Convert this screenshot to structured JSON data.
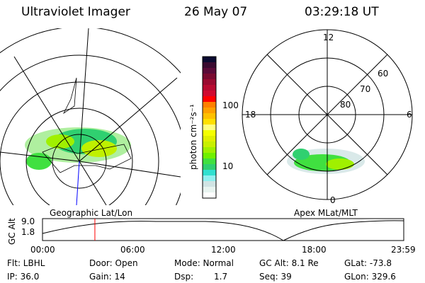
{
  "header": {
    "instrument": "Ultraviolet Imager",
    "date": "26 May 07",
    "time": "03:29:18 UT"
  },
  "colorbar": {
    "unit_label": "photon cm⁻²s⁻¹",
    "ticks": [
      "100",
      "10"
    ],
    "colors": [
      "#0a0a30",
      "#3a0a30",
      "#5a0a38",
      "#7a0a30",
      "#9a0a30",
      "#b80a30",
      "#d00a30",
      "#ff0000",
      "#ff8000",
      "#ffa000",
      "#ffc000",
      "#ffe000",
      "#ffff80",
      "#f4ff00",
      "#e0f000",
      "#c8f000",
      "#a0f000",
      "#70f000",
      "#40e040",
      "#30d070",
      "#30e0d0",
      "#90f0f0",
      "#d0e4e4",
      "#e8f4f0",
      "#ffffff"
    ]
  },
  "left_map": {
    "label": "Geographic Lat/Lon"
  },
  "right_map": {
    "label": "Apex MLat/MLT",
    "mlt_labels": [
      "12",
      "18",
      "6",
      "0"
    ],
    "lat_labels": [
      "60",
      "70",
      "80"
    ]
  },
  "timeline": {
    "ylabel": "GC Alt",
    "yticks": [
      "9.0",
      "1.8"
    ],
    "xticks": [
      "00:00",
      "06:00",
      "12:00",
      "18:00",
      "23:59"
    ],
    "current_time_fraction": 0.145,
    "marker_color": "#ff0000"
  },
  "info": {
    "filter": "Flt: LBHL",
    "door": "Door: Open",
    "mode": "Mode: Normal",
    "gc_alt": "GC Alt: 8.1 Re",
    "glat": "GLat: -73.8",
    "ip": "IP: 36.0",
    "gain": "Gain: 14",
    "dsp_label": "Dsp:",
    "dsp_value": "1.7",
    "seq": "Seq: 39",
    "glon": "GLon: 329.6"
  }
}
